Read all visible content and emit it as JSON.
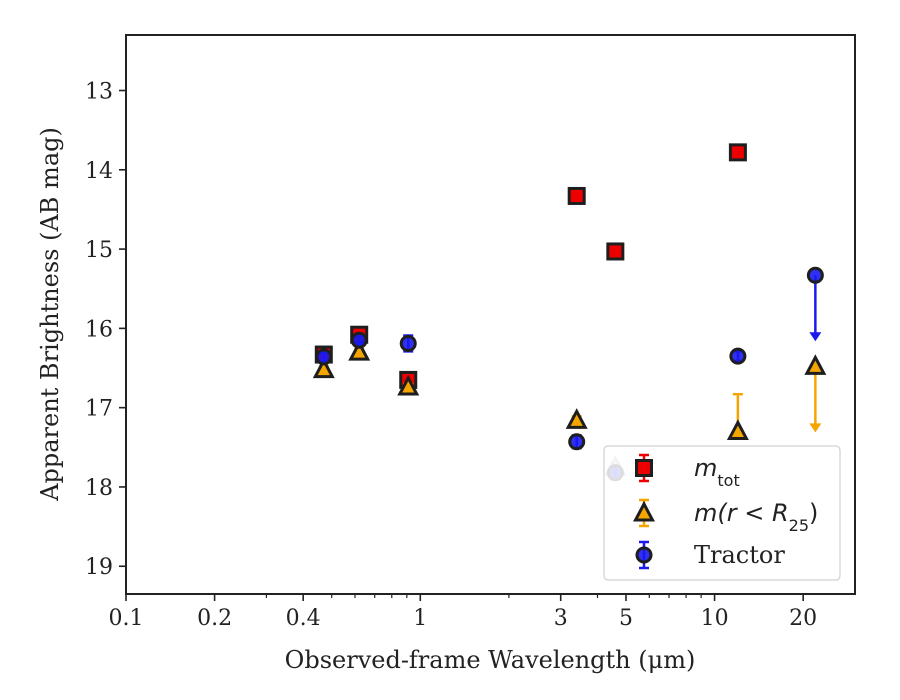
{
  "chart_data": {
    "type": "scatter",
    "x_scale": "log",
    "y_inverted": true,
    "xlim": [
      0.1,
      30
    ],
    "ylim": [
      19.35,
      12.3
    ],
    "xlabel": "Observed-frame Wavelength (μm)",
    "ylabel": "Apparent Brightness (AB mag)",
    "x_ticks": [
      0.1,
      0.2,
      0.4,
      1,
      3,
      5,
      10,
      20
    ],
    "x_tick_labels": [
      "0.1",
      "0.2",
      "0.4",
      "1",
      "3",
      "5",
      "10",
      "20"
    ],
    "y_ticks": [
      13,
      14,
      15,
      16,
      17,
      18,
      19
    ],
    "y_tick_labels": [
      "13",
      "14",
      "15",
      "16",
      "17",
      "18",
      "19"
    ],
    "grid": false,
    "legend_position": "bottom-right",
    "series": [
      {
        "name": "m_tot",
        "legend_main": "m",
        "legend_sub": "tot",
        "legend_rest": "",
        "marker": "square",
        "color": "#ee0000",
        "points": [
          {
            "x": 0.47,
            "y": 16.33,
            "err": 0.04
          },
          {
            "x": 0.62,
            "y": 16.08,
            "err": 0.04
          },
          {
            "x": 0.91,
            "y": 16.65,
            "err": 0.04
          },
          {
            "x": 3.4,
            "y": 14.33,
            "err": 0.03
          },
          {
            "x": 4.6,
            "y": 15.03,
            "err": 0.03
          },
          {
            "x": 12.0,
            "y": 13.78,
            "err": 0.03
          }
        ]
      },
      {
        "name": "m(r<R25)",
        "legend_main": "m(r < R",
        "legend_sub": "25",
        "legend_rest": ")",
        "marker": "triangle",
        "color": "#f5a500",
        "points": [
          {
            "x": 0.47,
            "y": 16.52,
            "err": 0.04
          },
          {
            "x": 0.62,
            "y": 16.3,
            "err": 0.04
          },
          {
            "x": 0.91,
            "y": 16.74,
            "err": 0.04
          },
          {
            "x": 3.4,
            "y": 17.16,
            "err": 0.05
          },
          {
            "x": 4.6,
            "y": 17.75,
            "err": 0.06
          },
          {
            "x": 12.0,
            "y": 17.3,
            "err_lo": 0.47,
            "err_hi": 0.0
          },
          {
            "x": 22.0,
            "y": 16.48,
            "upper_limit": true
          }
        ]
      },
      {
        "name": "Tractor",
        "legend_main": "Tractor",
        "legend_sub": "",
        "legend_rest": "",
        "marker": "circle",
        "color": "#1a1aee",
        "points": [
          {
            "x": 0.47,
            "y": 16.36,
            "err": 0.05
          },
          {
            "x": 0.62,
            "y": 16.15,
            "err": 0.05
          },
          {
            "x": 0.91,
            "y": 16.19,
            "err": 0.1
          },
          {
            "x": 3.4,
            "y": 17.43,
            "err": 0.08
          },
          {
            "x": 4.6,
            "y": 17.82,
            "err": 0.08
          },
          {
            "x": 12.0,
            "y": 16.35,
            "err": 0.06
          },
          {
            "x": 22.0,
            "y": 15.33,
            "upper_limit": true
          }
        ]
      }
    ]
  }
}
